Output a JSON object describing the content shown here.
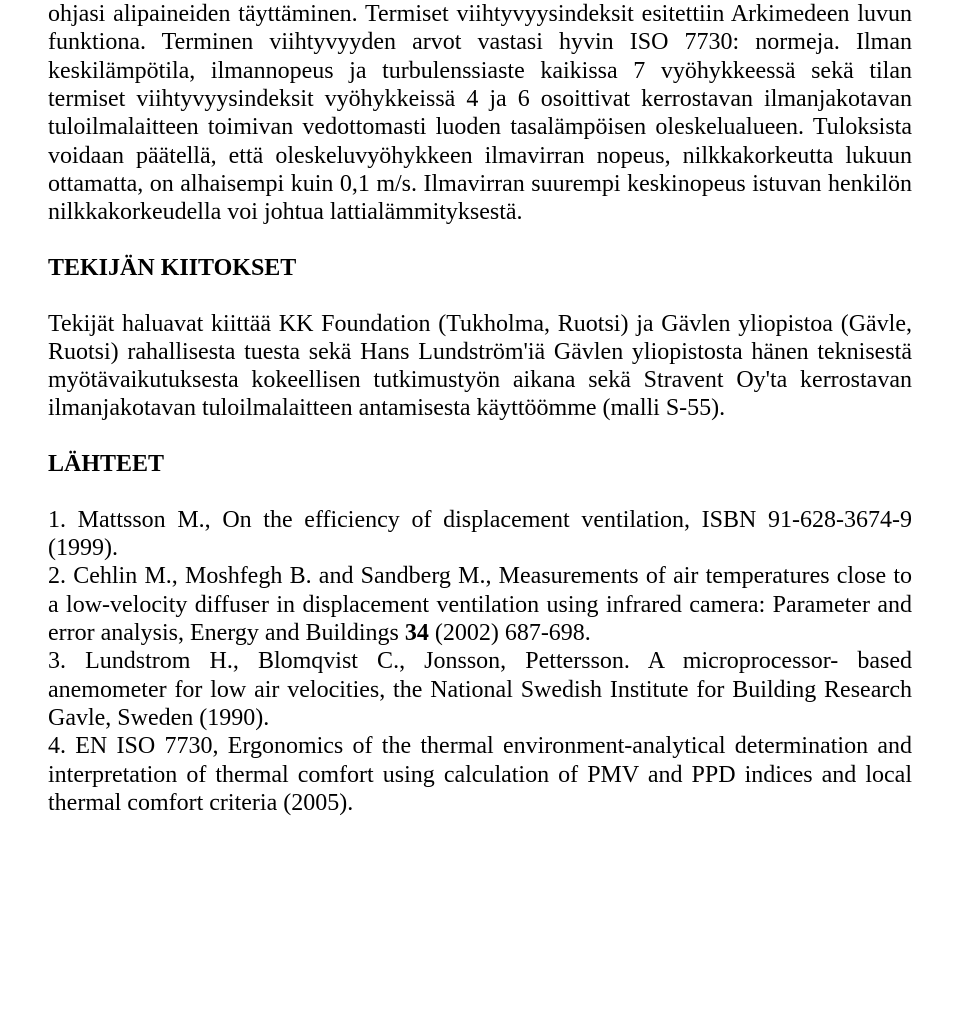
{
  "paragraph1": "ohjasi alipaineiden täyttäminen. Termiset viihtyvyysindeksit esitettiin Arkimedeen luvun funktiona. Terminen viihtyvyyden arvot vastasi hyvin ISO 7730: normeja. Ilman keskilämpötila, ilmannopeus ja turbulenssiaste kaikissa 7 vyöhykkeessä sekä tilan termiset viihtyvyysindeksit vyöhykkeissä 4 ja 6 osoittivat kerrostavan ilmanjakotavan tuloilmalaitteen toimivan vedottomasti luoden tasalämpöisen oleskelualueen. Tuloksista voidaan päätellä, että oleskeluvyöhykkeen ilmavirran nopeus, nilkkakorkeutta lukuun ottamatta, on alhaisempi kuin 0,1 m/s. Ilmavirran suurempi keskinopeus istuvan henkilön nilkkakorkeudella voi johtua lattialämmityksestä.",
  "heading1": "TEKIJÄN KIITOKSET",
  "paragraph2": "Tekijät haluavat kiittää KK Foundation (Tukholma, Ruotsi) ja  Gävlen yliopistoa (Gävle, Ruotsi) rahallisesta tuesta sekä Hans Lundström'iä Gävlen yliopistosta hänen teknisestä myötävaikutuksesta kokeellisen tutkimustyön aikana sekä Stravent Oy'ta kerrostavan ilmanjakotavan tuloilmalaitteen antamisesta käyttöömme (malli S-55).",
  "heading2": "LÄHTEET",
  "references": {
    "r1": "1. Mattsson M., On the efficiency of displacement ventilation, ISBN 91-628-3674-9 (1999).",
    "r2_a": "2. Cehlin M., Moshfegh B. and Sandberg M., Measurements of air temperatures close to a low-velocity diffuser in displacement ventilation using infrared camera: Parameter and error analysis, Energy and Buildings ",
    "r2_bold": "34",
    "r2_b": " (2002) 687-698.",
    "r3": "3. Lundstrom H., Blomqvist C., Jonsson, Pettersson. A microprocessor- based anemometer for low air velocities, the National Swedish Institute for Building Research Gavle, Sweden (1990).",
    "r4": "4. EN ISO 7730, Ergonomics of the thermal environment-analytical determination and interpretation of thermal comfort using calculation of PMV and PPD indices and local thermal comfort criteria (2005)."
  }
}
